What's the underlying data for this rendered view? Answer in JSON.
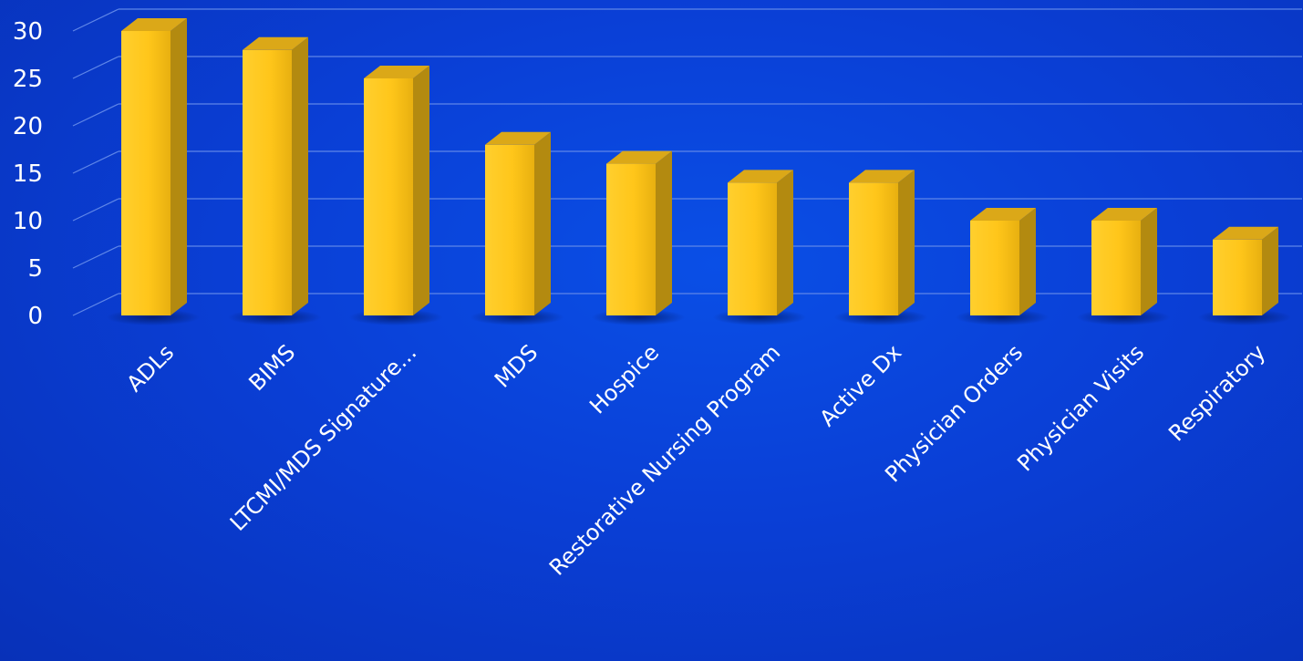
{
  "chart_data": {
    "type": "bar",
    "categories": [
      "ADLs",
      "BIMS",
      "LTCMI/MDS Signature...",
      "MDS",
      "Hospice",
      "Restorative Nursing Program",
      "Active Dx",
      "Physician Orders",
      "Physician Visits",
      "Respiratory"
    ],
    "values": [
      30,
      28,
      25,
      18,
      16,
      14,
      14,
      10,
      10,
      8
    ],
    "title": "",
    "xlabel": "",
    "ylabel": "",
    "ylim": [
      0,
      30
    ],
    "yticks": [
      "0",
      "5",
      "10",
      "15",
      "20",
      "25",
      "30"
    ],
    "grid": true,
    "legend": "none",
    "style": "3d-column"
  },
  "colors": {
    "background": "#0a3fd6",
    "bar_front": "#ffc61a",
    "bar_side": "#b38a10",
    "bar_top": "#dba818",
    "gridline": "#5f86e8",
    "text": "#ffffff"
  }
}
